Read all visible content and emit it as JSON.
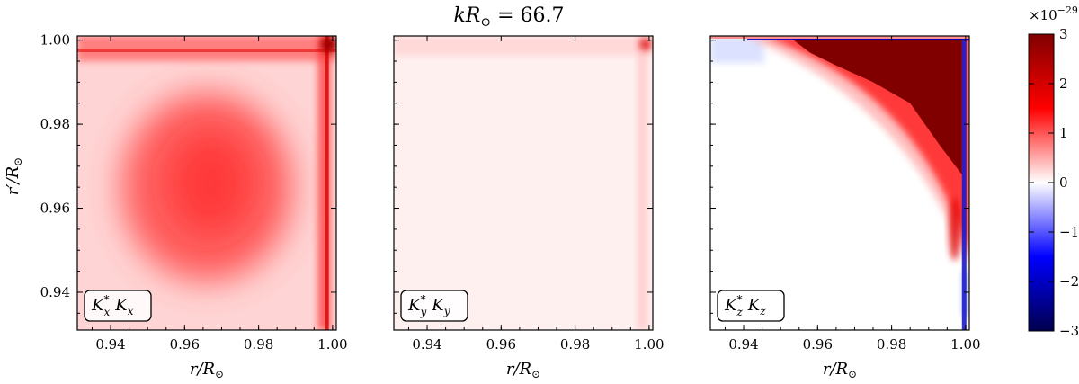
{
  "chart_data": {
    "type": "heatmap",
    "suptitle": "kR⊙ = 66.7",
    "suptitle_parts": {
      "lhs": "kR",
      "sub": "⊙",
      "rhs": " = 66.7"
    },
    "xlabel": "r/R⊙",
    "xlabel_parts": {
      "lhs": "r/R",
      "sub": "⊙"
    },
    "ylabel": "r′/R⊙",
    "ylabel_parts": {
      "lhs": "r′/R",
      "sub": "⊙"
    },
    "xlim": [
      0.931,
      1.001
    ],
    "ylim": [
      0.931,
      1.001
    ],
    "x_ticks": [
      0.94,
      0.96,
      0.98,
      1.0
    ],
    "x_tick_labels": [
      "0.94",
      "0.96",
      "0.98",
      "1.00"
    ],
    "y_ticks": [
      0.94,
      0.96,
      0.98,
      1.0
    ],
    "y_tick_labels": [
      "0.94",
      "0.96",
      "0.98",
      "1.00"
    ],
    "panels": [
      {
        "id": "x",
        "label_base": "K",
        "label_sup": "*",
        "label_sub": "x",
        "label_text": "K*x Kx"
      },
      {
        "id": "y",
        "label_base": "K",
        "label_sup": "*",
        "label_sub": "y",
        "label_text": "K*y Ky"
      },
      {
        "id": "z",
        "label_base": "K",
        "label_sup": "*",
        "label_sub": "z",
        "label_text": "K*z Kz"
      }
    ],
    "colorbar": {
      "colormap": "seismic",
      "vmin": -3,
      "vmax": 3,
      "ticks": [
        3,
        2,
        1,
        0,
        -1,
        -2,
        -3
      ],
      "tick_labels": [
        "3",
        "2",
        "1",
        "0",
        "−1",
        "−2",
        "−3"
      ],
      "scale_base": "×10",
      "scale_exp": "−29"
    }
  },
  "colors": {
    "dark_red": "#800000",
    "red": "#ff0000",
    "white": "#ffffff",
    "blue": "#0000ff",
    "dark_blue": "#00004d"
  }
}
